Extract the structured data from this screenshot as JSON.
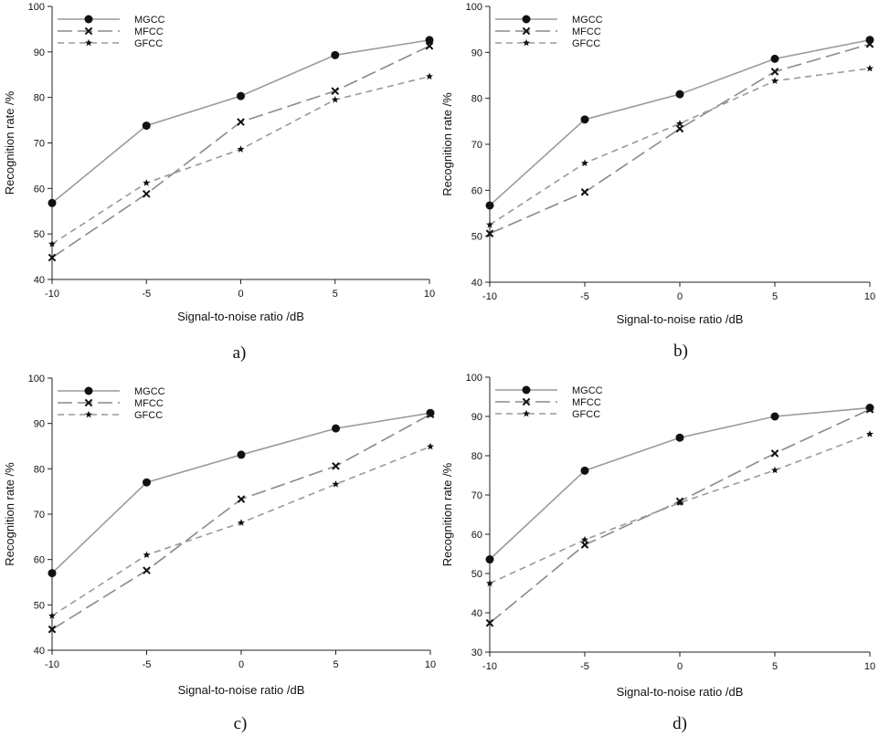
{
  "colors": {
    "axis": "#222222",
    "MGCC": "#9a9a9a",
    "MFCC": "#8a8a8a",
    "GFCC": "#9a9a9a",
    "marker": "#111111"
  },
  "chart_data": [
    {
      "type": "line",
      "panel_label": "a)",
      "xlabel": "Signal-to-noise ratio /dB",
      "ylabel": "Recognition rate /%",
      "x": [
        -10,
        -5,
        0,
        5,
        10
      ],
      "xticks": [
        "-10",
        "-5",
        "0",
        "5",
        "10"
      ],
      "ylim": [
        40,
        100
      ],
      "yticks": [
        "40",
        "50",
        "60",
        "70",
        "80",
        "90",
        "100"
      ],
      "legend_position": "top-left",
      "series": [
        {
          "name": "MGCC",
          "marker": "circle",
          "dash": "solid",
          "values": [
            56.8,
            73.8,
            80.3,
            89.3,
            92.6
          ]
        },
        {
          "name": "MFCC",
          "marker": "x",
          "dash": "long-dash",
          "values": [
            44.8,
            58.8,
            74.6,
            81.4,
            91.3
          ]
        },
        {
          "name": "GFCC",
          "marker": "star",
          "dash": "short-dash",
          "values": [
            47.8,
            61.2,
            68.6,
            79.5,
            84.6
          ]
        }
      ]
    },
    {
      "type": "line",
      "panel_label": "b)",
      "xlabel": "Signal-to-noise ratio /dB",
      "ylabel": "Recognition rate /%",
      "x": [
        -10,
        -5,
        0,
        5,
        10
      ],
      "xticks": [
        "-10",
        "-5",
        "0",
        "5",
        "10"
      ],
      "ylim": [
        40,
        100
      ],
      "yticks": [
        "40",
        "50",
        "60",
        "70",
        "80",
        "90",
        "100"
      ],
      "legend_position": "top-left",
      "series": [
        {
          "name": "MGCC",
          "marker": "circle",
          "dash": "solid",
          "values": [
            56.7,
            75.4,
            80.9,
            88.6,
            92.7
          ]
        },
        {
          "name": "MFCC",
          "marker": "x",
          "dash": "long-dash",
          "values": [
            50.6,
            59.6,
            73.4,
            85.8,
            91.8
          ]
        },
        {
          "name": "GFCC",
          "marker": "star",
          "dash": "short-dash",
          "values": [
            52.5,
            65.9,
            74.5,
            83.8,
            86.5
          ]
        }
      ]
    },
    {
      "type": "line",
      "panel_label": "c)",
      "xlabel": "Signal-to-noise ratio /dB",
      "ylabel": "Recognition rate /%",
      "x": [
        -10,
        -5,
        0,
        5,
        10
      ],
      "xticks": [
        "-10",
        "-5",
        "0",
        "5",
        "10"
      ],
      "ylim": [
        40,
        100
      ],
      "yticks": [
        "40",
        "50",
        "60",
        "70",
        "80",
        "90",
        "100"
      ],
      "legend_position": "top-left",
      "series": [
        {
          "name": "MGCC",
          "marker": "circle",
          "dash": "solid",
          "values": [
            57.0,
            77.0,
            83.1,
            88.9,
            92.3
          ]
        },
        {
          "name": "MFCC",
          "marker": "x",
          "dash": "long-dash",
          "values": [
            44.6,
            57.6,
            73.3,
            80.6,
            92.0
          ]
        },
        {
          "name": "GFCC",
          "marker": "star",
          "dash": "short-dash",
          "values": [
            47.6,
            61.0,
            68.1,
            76.6,
            84.9
          ]
        }
      ]
    },
    {
      "type": "line",
      "panel_label": "d)",
      "xlabel": "Signal-to-noise ratio /dB",
      "ylabel": "Recognition rate /%",
      "x": [
        -10,
        -5,
        0,
        5,
        10
      ],
      "xticks": [
        "-10",
        "-5",
        "0",
        "5",
        "10"
      ],
      "ylim": [
        30,
        100
      ],
      "yticks": [
        "30",
        "40",
        "50",
        "60",
        "70",
        "80",
        "90",
        "100"
      ],
      "legend_position": "top-left",
      "series": [
        {
          "name": "MGCC",
          "marker": "circle",
          "dash": "solid",
          "values": [
            53.6,
            76.2,
            84.6,
            90.0,
            92.2
          ]
        },
        {
          "name": "MFCC",
          "marker": "x",
          "dash": "long-dash",
          "values": [
            37.4,
            57.3,
            68.4,
            80.6,
            91.8
          ]
        },
        {
          "name": "GFCC",
          "marker": "star",
          "dash": "short-dash",
          "values": [
            47.5,
            58.6,
            68.0,
            76.3,
            85.5
          ]
        }
      ]
    }
  ]
}
